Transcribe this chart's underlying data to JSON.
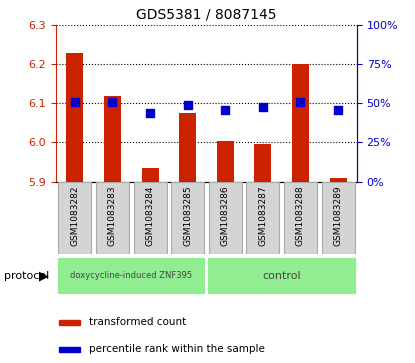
{
  "title": "GDS5381 / 8087145",
  "samples": [
    "GSM1083282",
    "GSM1083283",
    "GSM1083284",
    "GSM1083285",
    "GSM1083286",
    "GSM1083287",
    "GSM1083288",
    "GSM1083289"
  ],
  "bar_values": [
    6.23,
    6.12,
    5.935,
    6.075,
    6.005,
    5.995,
    6.2,
    5.91
  ],
  "bar_bottom": 5.9,
  "percentile_values": [
    51,
    51,
    44,
    49,
    46,
    48,
    51,
    46
  ],
  "ylim_left": [
    5.9,
    6.3
  ],
  "ylim_right": [
    0,
    100
  ],
  "yticks_left": [
    5.9,
    6.0,
    6.1,
    6.2,
    6.3
  ],
  "yticks_right": [
    0,
    25,
    50,
    75,
    100
  ],
  "bar_color": "#CC2200",
  "dot_color": "#0000CC",
  "grid_color": "#000000",
  "protocol_groups": [
    {
      "label": "doxycycline-induced ZNF395",
      "color": "#90EE90",
      "start": 0,
      "end": 4
    },
    {
      "label": "control",
      "color": "#90EE90",
      "start": 4,
      "end": 8
    }
  ],
  "protocol_label": "protocol",
  "legend_bar_label": "transformed count",
  "legend_dot_label": "percentile rank within the sample",
  "tick_label_color_left": "#CC2200",
  "tick_label_color_right": "#0000CC",
  "bar_width": 0.45,
  "dot_size": 28,
  "background_color": "#ffffff",
  "sample_box_color": "#d4d4d4",
  "sample_box_edge": "#aaaaaa"
}
